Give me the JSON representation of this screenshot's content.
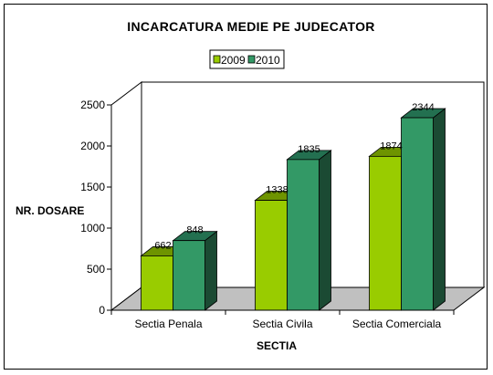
{
  "chart_data": {
    "type": "bar",
    "title": "INCARCATURA MEDIE PE JUDECATOR",
    "xlabel": "SECTIA",
    "ylabel": "NR. DOSARE",
    "categories": [
      "Sectia Penala",
      "Sectia Civila",
      "Sectia Comerciala"
    ],
    "series": [
      {
        "name": "2009",
        "values": [
          662,
          1338,
          1874
        ]
      },
      {
        "name": "2010",
        "values": [
          848,
          1835,
          2344
        ]
      }
    ],
    "ylim": [
      0,
      2500
    ],
    "yticks": [
      0,
      500,
      1000,
      1500,
      2000,
      2500
    ],
    "grid": false,
    "legend_position": "top-center",
    "render_3d": true,
    "colors": {
      "2009": {
        "front": "#99CC00",
        "top": "#6E9400",
        "side": "#4A6600"
      },
      "2010": {
        "front": "#339966",
        "top": "#237050",
        "side": "#1B4A33"
      },
      "floor": "#C0C0C0",
      "frame": "#000000"
    }
  }
}
